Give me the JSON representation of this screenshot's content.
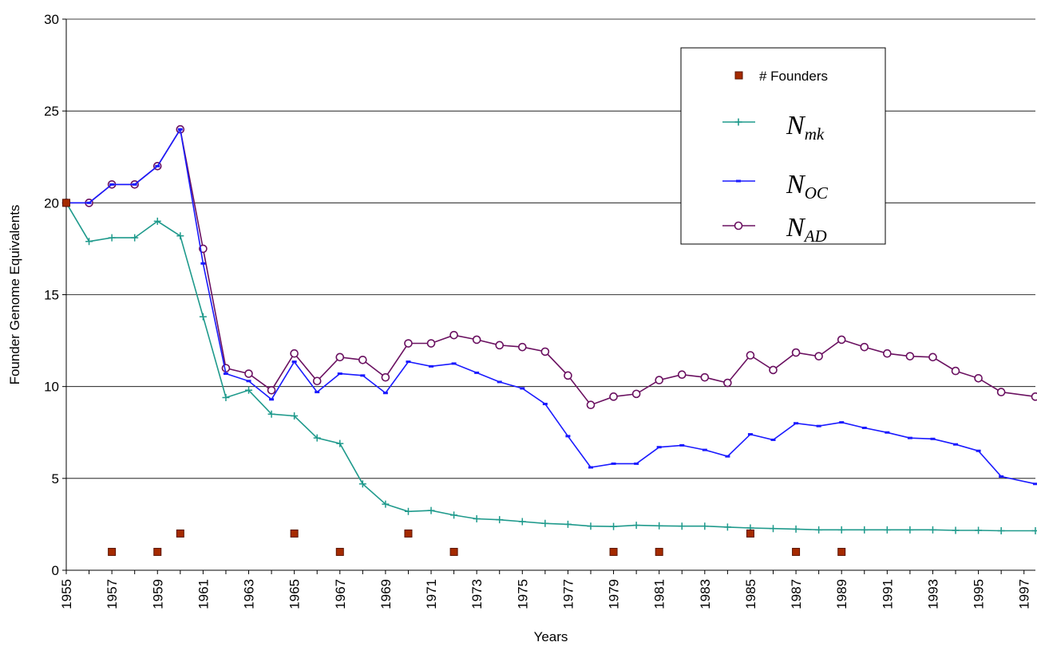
{
  "chart_data": {
    "type": "line",
    "title": "",
    "xlabel": "Years",
    "ylabel": "Founder Genome Equivalents",
    "xlim": [
      1955,
      1997.5
    ],
    "ylim": [
      0,
      30
    ],
    "y_ticks": [
      "0",
      "5",
      "10",
      "15",
      "20",
      "25",
      "30"
    ],
    "x_ticks": [
      "1955",
      "1957",
      "1959",
      "1961",
      "1963",
      "1965",
      "1967",
      "1969",
      "1971",
      "1973",
      "1975",
      "1977",
      "1979",
      "1981",
      "1983",
      "1985",
      "1987",
      "1989",
      "1991",
      "1993",
      "1995",
      "1997"
    ],
    "grid": "horizontal",
    "legend_position": "top-right",
    "colors": {
      "founders": "#a52a00",
      "nmk": "#1f9a8c",
      "noc": "#1a1aff",
      "nad": "#6a1060"
    },
    "legend": {
      "founders": "# Founders",
      "nmk": {
        "main": "N",
        "sub": "mk"
      },
      "noc": {
        "main": "N",
        "sub": "OC"
      },
      "nad": {
        "main": "N",
        "sub": "AD"
      }
    },
    "series": [
      {
        "key": "nmk",
        "marker": "plus",
        "x": [
          1955,
          1956,
          1957,
          1958,
          1959,
          1960,
          1961,
          1962,
          1963,
          1964,
          1965,
          1966,
          1967,
          1968,
          1969,
          1970,
          1971,
          1972,
          1973,
          1974,
          1975,
          1976,
          1977,
          1978,
          1979,
          1980,
          1981,
          1982,
          1983,
          1984,
          1985,
          1986,
          1987,
          1988,
          1989,
          1990,
          1991,
          1992,
          1993,
          1994,
          1995,
          1996,
          1997.5
        ],
        "values": [
          20.0,
          17.9,
          18.1,
          18.1,
          19.0,
          18.2,
          13.8,
          9.4,
          9.8,
          8.5,
          8.4,
          7.2,
          6.9,
          4.7,
          3.6,
          3.2,
          3.25,
          3.0,
          2.8,
          2.75,
          2.65,
          2.55,
          2.5,
          2.4,
          2.38,
          2.45,
          2.42,
          2.4,
          2.4,
          2.35,
          2.3,
          2.27,
          2.24,
          2.2,
          2.2,
          2.2,
          2.2,
          2.2,
          2.2,
          2.17,
          2.17,
          2.15,
          2.15
        ]
      },
      {
        "key": "noc",
        "marker": "dash",
        "x": [
          1955,
          1956,
          1957,
          1958,
          1959,
          1960,
          1961,
          1962,
          1963,
          1964,
          1965,
          1966,
          1967,
          1968,
          1969,
          1970,
          1971,
          1972,
          1973,
          1974,
          1975,
          1976,
          1977,
          1978,
          1979,
          1980,
          1981,
          1982,
          1983,
          1984,
          1985,
          1986,
          1987,
          1988,
          1989,
          1990,
          1991,
          1992,
          1993,
          1994,
          1995,
          1996,
          1997.5
        ],
        "values": [
          20.0,
          20.0,
          21.0,
          21.0,
          22.0,
          24.0,
          16.7,
          10.7,
          10.3,
          9.3,
          11.35,
          9.7,
          10.7,
          10.6,
          9.65,
          11.35,
          11.1,
          11.25,
          10.75,
          10.25,
          9.9,
          9.05,
          7.3,
          5.6,
          5.8,
          5.8,
          6.7,
          6.8,
          6.55,
          6.2,
          7.4,
          7.1,
          8.0,
          7.85,
          8.05,
          7.75,
          7.5,
          7.2,
          7.15,
          6.85,
          6.5,
          5.1,
          4.7
        ]
      },
      {
        "key": "nad",
        "marker": "circle",
        "x": [
          1955,
          1956,
          1957,
          1958,
          1959,
          1960,
          1961,
          1962,
          1963,
          1964,
          1965,
          1966,
          1967,
          1968,
          1969,
          1970,
          1971,
          1972,
          1973,
          1974,
          1975,
          1976,
          1977,
          1978,
          1979,
          1980,
          1981,
          1982,
          1983,
          1984,
          1985,
          1986,
          1987,
          1988,
          1989,
          1990,
          1991,
          1992,
          1993,
          1994,
          1995,
          1996,
          1997.5
        ],
        "values": [
          20.0,
          20.0,
          21.0,
          21.0,
          22.0,
          24.0,
          17.5,
          11.0,
          10.7,
          9.8,
          11.8,
          10.3,
          11.6,
          11.45,
          10.5,
          12.35,
          12.35,
          12.8,
          12.55,
          12.25,
          12.15,
          11.9,
          10.6,
          9.0,
          9.45,
          9.6,
          10.35,
          10.65,
          10.5,
          10.2,
          11.7,
          10.9,
          11.85,
          11.65,
          12.55,
          12.15,
          11.8,
          11.65,
          11.6,
          10.85,
          10.45,
          9.7,
          9.45
        ]
      },
      {
        "key": "founders",
        "marker": "square",
        "x": [
          1955,
          1957,
          1959,
          1960,
          1965,
          1967,
          1970,
          1972,
          1979,
          1981,
          1985,
          1987,
          1989
        ],
        "values": [
          20,
          1,
          1,
          2,
          2,
          1,
          2,
          1,
          1,
          1,
          2,
          1,
          1
        ]
      }
    ]
  }
}
